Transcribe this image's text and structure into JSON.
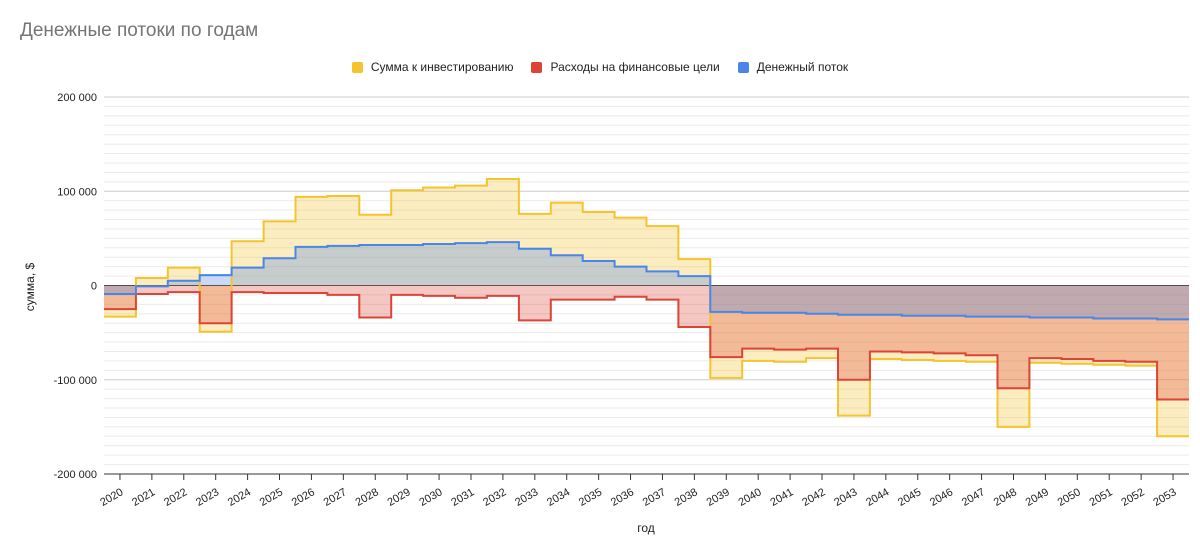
{
  "chart_data": {
    "type": "area",
    "title": "Денежные потоки по годам",
    "xlabel": "год",
    "ylabel": "сумма, $",
    "ylim": [
      -200000,
      200000
    ],
    "yticks": [
      200000,
      100000,
      0,
      -100000,
      -200000
    ],
    "ytick_labels": [
      "200 000",
      "100 000",
      "0",
      "-100 000",
      "-200 000"
    ],
    "categories": [
      "2020",
      "2021",
      "2022",
      "2023",
      "2024",
      "2025",
      "2026",
      "2027",
      "2028",
      "2029",
      "2030",
      "2031",
      "2032",
      "2033",
      "2034",
      "2035",
      "2036",
      "2037",
      "2038",
      "2039",
      "2040",
      "2041",
      "2042",
      "2043",
      "2044",
      "2045",
      "2046",
      "2047",
      "2048",
      "2049",
      "2050",
      "2051",
      "2052",
      "2053"
    ],
    "series": [
      {
        "name": "Сумма к инвестированию",
        "color": "#f4c430",
        "values": [
          -33000,
          8000,
          19000,
          -49000,
          47000,
          68000,
          94000,
          95000,
          75000,
          101000,
          104000,
          106000,
          113000,
          76000,
          88000,
          78000,
          72000,
          63000,
          28000,
          -98000,
          -80000,
          -81000,
          -77000,
          -138000,
          -78000,
          -79000,
          -80000,
          -81000,
          -150000,
          -82000,
          -83000,
          -84000,
          -85000,
          -160000
        ]
      },
      {
        "name": "Расходы на финансовые цели",
        "color": "#db4437",
        "values": [
          -25000,
          -9000,
          -7000,
          -40000,
          -7000,
          -8000,
          -8000,
          -10000,
          -34000,
          -10000,
          -11000,
          -13000,
          -11000,
          -37000,
          -15000,
          -15000,
          -12000,
          -15000,
          -44000,
          -76000,
          -67000,
          -68000,
          -67000,
          -100000,
          -70000,
          -71000,
          -72000,
          -74000,
          -109000,
          -77000,
          -78000,
          -80000,
          -81000,
          -121000
        ]
      },
      {
        "name": "Денежный поток",
        "color": "#4a86e8",
        "values": [
          -9000,
          -1000,
          5000,
          11000,
          19000,
          29000,
          41000,
          42000,
          43000,
          43000,
          44000,
          45000,
          46000,
          39000,
          32000,
          26000,
          20000,
          15000,
          10000,
          -28000,
          -29000,
          -29000,
          -30000,
          -31000,
          -31000,
          -32000,
          -32000,
          -33000,
          -33000,
          -34000,
          -34000,
          -35000,
          -35000,
          -36000
        ]
      }
    ]
  }
}
